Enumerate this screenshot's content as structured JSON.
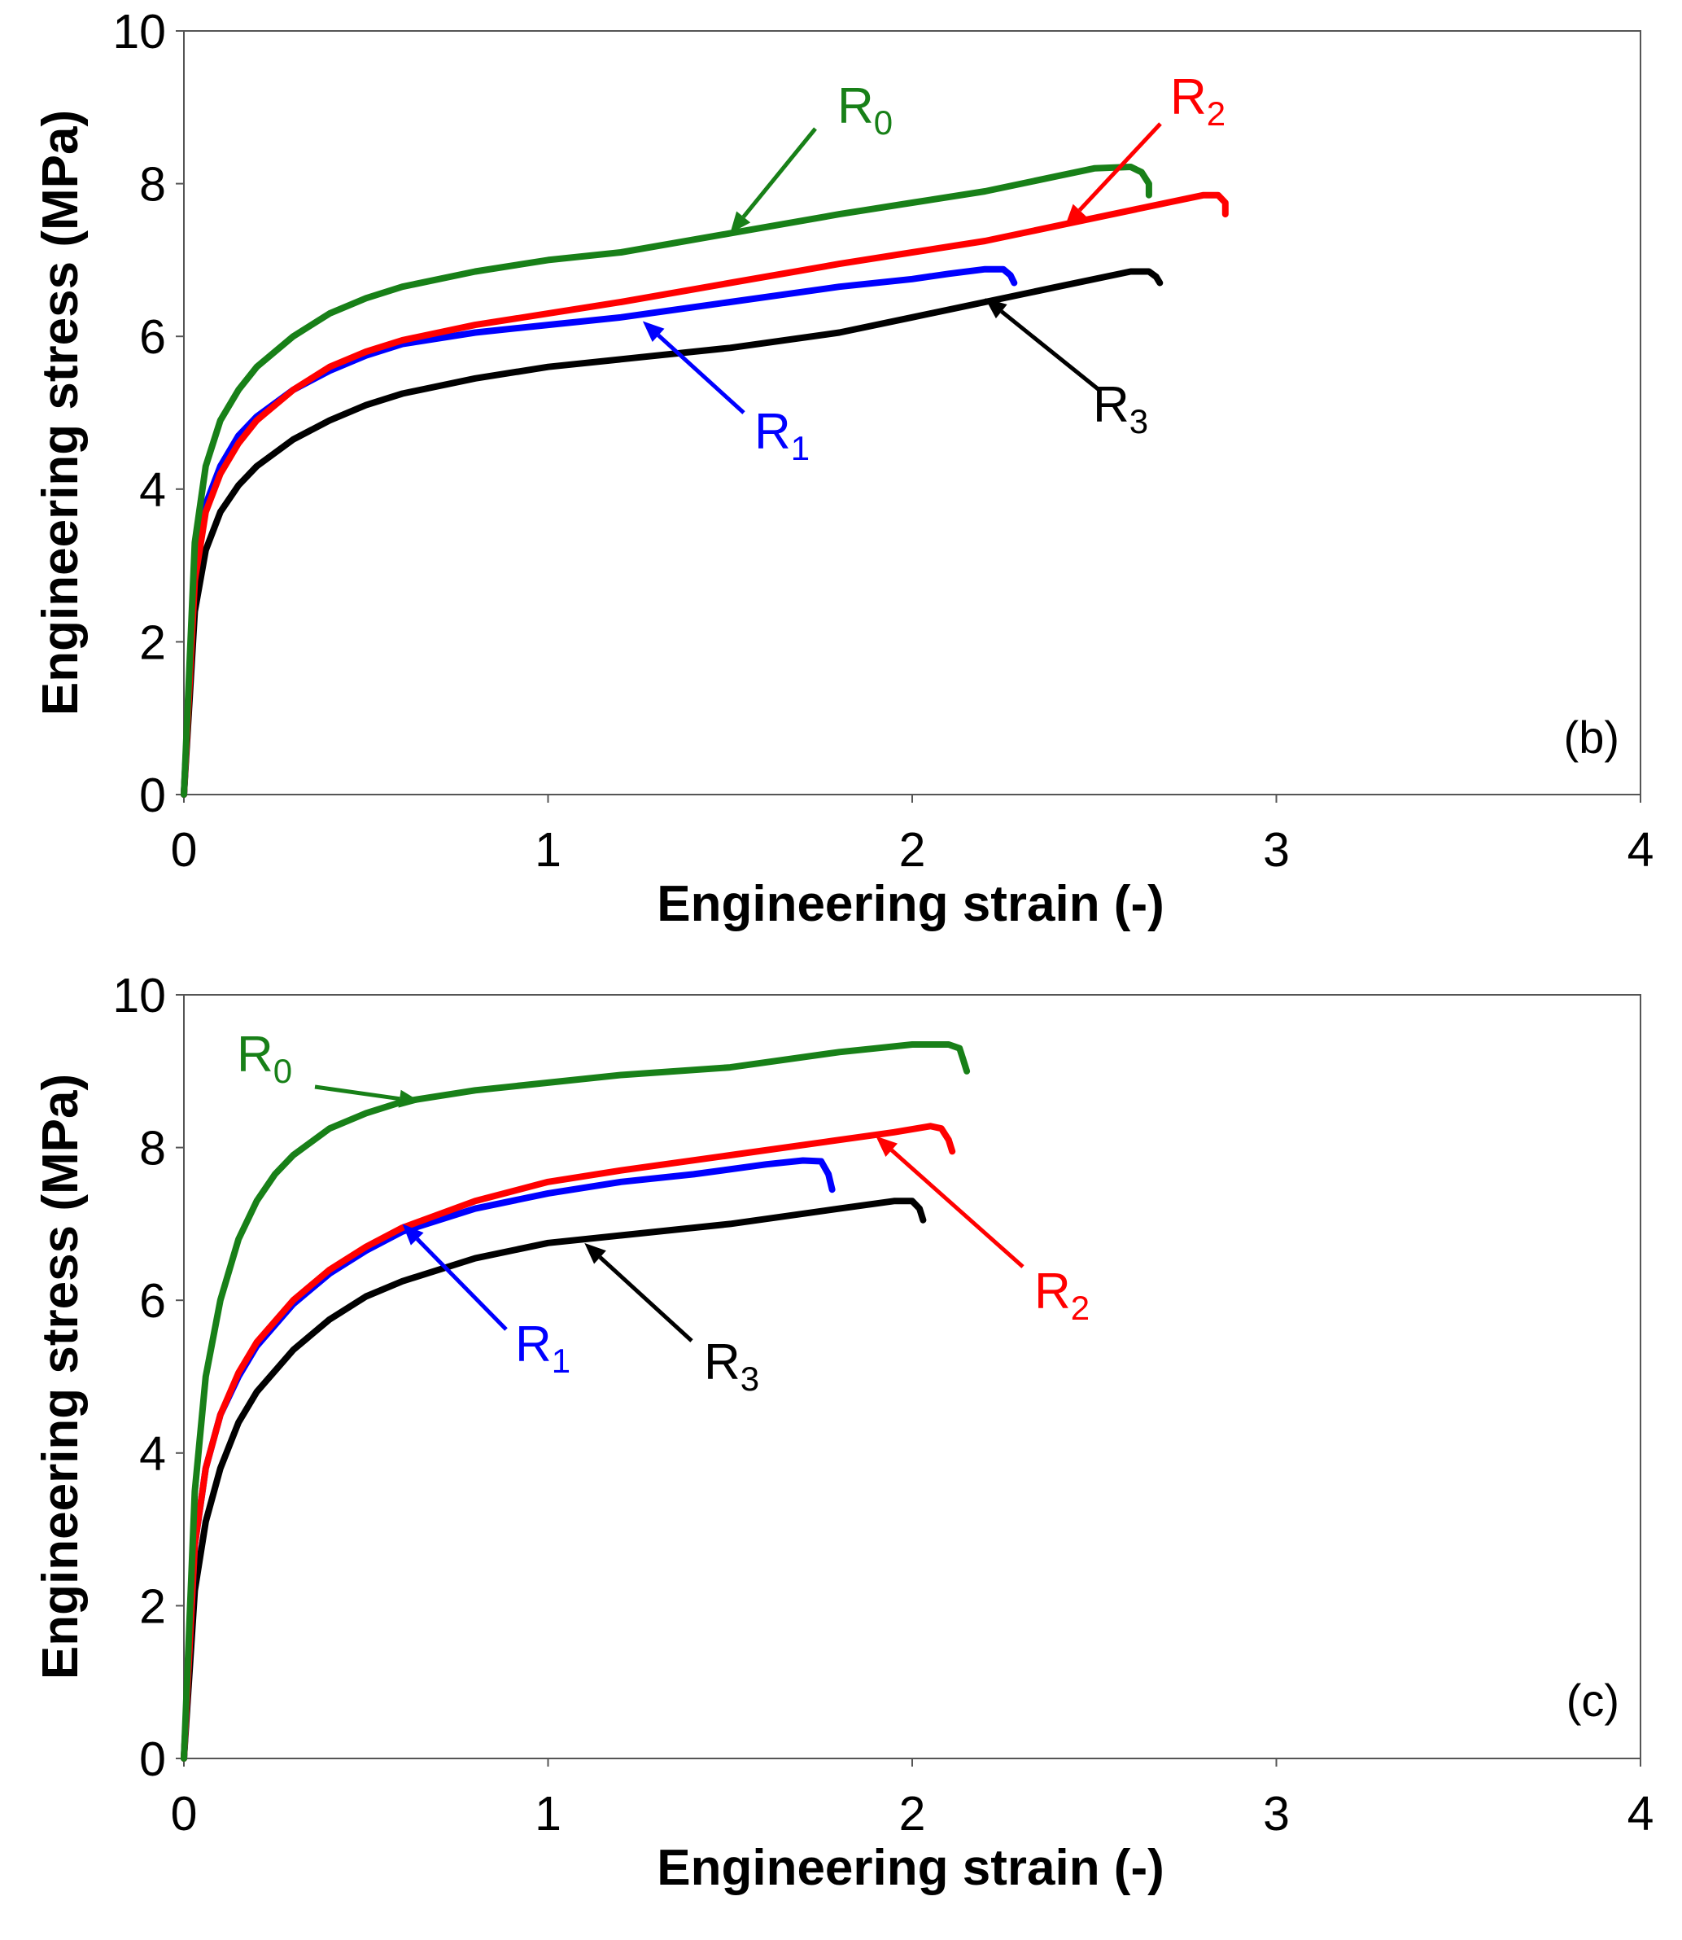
{
  "chart_data": [
    {
      "type": "line",
      "panel_label": "(b)",
      "xlabel": "Engineering strain (-)",
      "ylabel": "Engineering stress (MPa)",
      "xlim": [
        0,
        4
      ],
      "ylim": [
        0,
        10
      ],
      "xticks": [
        "0",
        "1",
        "2",
        "3",
        "4"
      ],
      "yticks": [
        "0",
        "2",
        "4",
        "6",
        "8",
        "10"
      ],
      "series": [
        {
          "name": "R0",
          "base": "R",
          "sub": "0",
          "color": "#188018",
          "x": [
            0,
            0.03,
            0.06,
            0.1,
            0.15,
            0.2,
            0.3,
            0.4,
            0.5,
            0.6,
            0.8,
            1.0,
            1.2,
            1.5,
            1.8,
            2.0,
            2.2,
            2.4,
            2.5,
            2.6,
            2.63,
            2.65,
            2.65
          ],
          "y": [
            0,
            3.3,
            4.3,
            4.9,
            5.3,
            5.6,
            6.0,
            6.3,
            6.5,
            6.65,
            6.85,
            7.0,
            7.1,
            7.35,
            7.6,
            7.75,
            7.9,
            8.1,
            8.2,
            8.22,
            8.15,
            8.0,
            7.85
          ]
        },
        {
          "name": "R2",
          "base": "R",
          "sub": "2",
          "color": "#ff0000",
          "x": [
            0,
            0.03,
            0.06,
            0.1,
            0.15,
            0.2,
            0.3,
            0.4,
            0.5,
            0.6,
            0.8,
            1.0,
            1.2,
            1.5,
            1.8,
            2.0,
            2.2,
            2.4,
            2.6,
            2.7,
            2.8,
            2.84,
            2.86,
            2.86
          ],
          "y": [
            0,
            2.8,
            3.7,
            4.2,
            4.6,
            4.9,
            5.3,
            5.6,
            5.8,
            5.95,
            6.15,
            6.3,
            6.45,
            6.7,
            6.95,
            7.1,
            7.25,
            7.45,
            7.65,
            7.75,
            7.85,
            7.85,
            7.75,
            7.6
          ]
        },
        {
          "name": "R1",
          "base": "R",
          "sub": "1",
          "color": "#0000ff",
          "x": [
            0,
            0.03,
            0.06,
            0.1,
            0.15,
            0.2,
            0.3,
            0.4,
            0.5,
            0.6,
            0.8,
            1.0,
            1.2,
            1.5,
            1.8,
            2.0,
            2.1,
            2.2,
            2.25,
            2.27,
            2.28
          ],
          "y": [
            0,
            2.9,
            3.8,
            4.3,
            4.7,
            4.95,
            5.3,
            5.55,
            5.75,
            5.9,
            6.05,
            6.15,
            6.25,
            6.45,
            6.65,
            6.75,
            6.82,
            6.88,
            6.88,
            6.8,
            6.7
          ]
        },
        {
          "name": "R3",
          "base": "R",
          "sub": "3",
          "color": "#000000",
          "x": [
            0,
            0.03,
            0.06,
            0.1,
            0.15,
            0.2,
            0.3,
            0.4,
            0.5,
            0.6,
            0.8,
            1.0,
            1.2,
            1.5,
            1.8,
            2.0,
            2.2,
            2.4,
            2.6,
            2.65,
            2.67,
            2.68
          ],
          "y": [
            0,
            2.4,
            3.2,
            3.7,
            4.05,
            4.3,
            4.65,
            4.9,
            5.1,
            5.25,
            5.45,
            5.6,
            5.7,
            5.85,
            6.05,
            6.25,
            6.45,
            6.65,
            6.85,
            6.85,
            6.78,
            6.7
          ]
        }
      ],
      "annotations": [
        {
          "series": "R0",
          "x": 1.5,
          "y": 7.35
        },
        {
          "series": "R2",
          "x": 2.42,
          "y": 7.45
        },
        {
          "series": "R1",
          "x": 1.26,
          "y": 6.2
        },
        {
          "series": "R3",
          "x": 2.2,
          "y": 6.5
        }
      ]
    },
    {
      "type": "line",
      "panel_label": "(c)",
      "xlabel": "Engineering strain (-)",
      "ylabel": "Engineering stress (MPa)",
      "xlim": [
        0,
        4
      ],
      "ylim": [
        0,
        10
      ],
      "xticks": [
        "0",
        "1",
        "2",
        "3",
        "4"
      ],
      "yticks": [
        "0",
        "2",
        "4",
        "6",
        "8",
        "10"
      ],
      "series": [
        {
          "name": "R0",
          "base": "R",
          "sub": "0",
          "color": "#188018",
          "x": [
            0,
            0.03,
            0.06,
            0.1,
            0.15,
            0.2,
            0.25,
            0.3,
            0.4,
            0.5,
            0.6,
            0.8,
            1.0,
            1.2,
            1.5,
            1.8,
            1.9,
            2.0,
            2.05,
            2.1,
            2.13,
            2.14,
            2.15
          ],
          "y": [
            0,
            3.5,
            5.0,
            6.0,
            6.8,
            7.3,
            7.65,
            7.9,
            8.25,
            8.45,
            8.6,
            8.75,
            8.85,
            8.95,
            9.05,
            9.25,
            9.3,
            9.35,
            9.35,
            9.35,
            9.3,
            9.15,
            9.0
          ]
        },
        {
          "name": "R2",
          "base": "R",
          "sub": "2",
          "color": "#ff0000",
          "x": [
            0,
            0.03,
            0.06,
            0.1,
            0.15,
            0.2,
            0.3,
            0.4,
            0.5,
            0.6,
            0.8,
            1.0,
            1.2,
            1.5,
            1.8,
            1.95,
            2.05,
            2.08,
            2.1,
            2.11
          ],
          "y": [
            0,
            2.8,
            3.8,
            4.5,
            5.05,
            5.45,
            6.0,
            6.4,
            6.7,
            6.95,
            7.3,
            7.55,
            7.7,
            7.9,
            8.1,
            8.2,
            8.28,
            8.25,
            8.1,
            7.95
          ]
        },
        {
          "name": "R1",
          "base": "R",
          "sub": "1",
          "color": "#0000ff",
          "x": [
            0,
            0.03,
            0.06,
            0.1,
            0.15,
            0.2,
            0.3,
            0.4,
            0.5,
            0.6,
            0.8,
            1.0,
            1.2,
            1.4,
            1.6,
            1.7,
            1.75,
            1.77,
            1.78
          ],
          "y": [
            0,
            2.8,
            3.8,
            4.5,
            5.0,
            5.4,
            5.95,
            6.35,
            6.65,
            6.9,
            7.2,
            7.4,
            7.55,
            7.65,
            7.78,
            7.83,
            7.82,
            7.65,
            7.45
          ]
        },
        {
          "name": "R3",
          "base": "R",
          "sub": "3",
          "color": "#000000",
          "x": [
            0,
            0.03,
            0.06,
            0.1,
            0.15,
            0.2,
            0.3,
            0.4,
            0.5,
            0.6,
            0.8,
            1.0,
            1.2,
            1.5,
            1.8,
            1.95,
            2.0,
            2.02,
            2.03
          ],
          "y": [
            0,
            2.2,
            3.1,
            3.8,
            4.4,
            4.8,
            5.35,
            5.75,
            6.05,
            6.25,
            6.55,
            6.75,
            6.85,
            7.0,
            7.2,
            7.3,
            7.3,
            7.2,
            7.05
          ]
        }
      ],
      "annotations": [
        {
          "series": "R0",
          "x": 0.65,
          "y": 8.6
        },
        {
          "series": "R2",
          "x": 1.9,
          "y": 8.15
        },
        {
          "series": "R1",
          "x": 0.6,
          "y": 7.0
        },
        {
          "series": "R3",
          "x": 1.1,
          "y": 6.75
        }
      ]
    }
  ]
}
